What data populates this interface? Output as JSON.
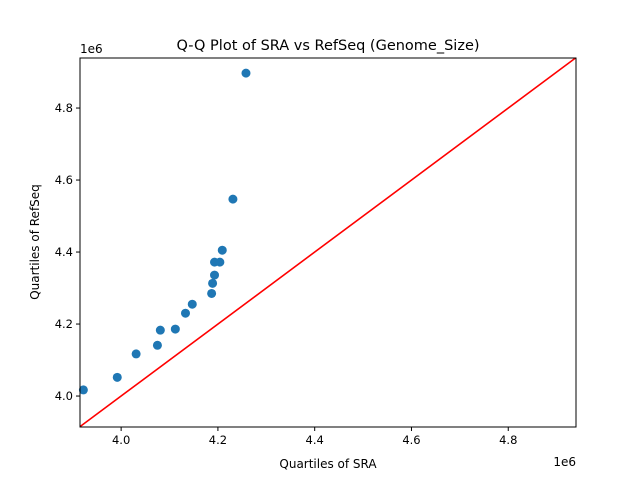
{
  "chart_data": {
    "type": "scatter",
    "title": "Q-Q Plot of SRA vs RefSeq (Genome_Size)",
    "xlabel": "Quartiles of SRA",
    "ylabel": "Quartiles of RefSeq",
    "x_offset_label": "1e6",
    "y_offset_label": "1e6",
    "xlim": [
      3.915,
      4.94
    ],
    "ylim": [
      3.914,
      4.939
    ],
    "xticks": [
      4.0,
      4.2,
      4.4,
      4.6,
      4.8
    ],
    "xtick_labels": [
      "4.0",
      "4.2",
      "4.4",
      "4.6",
      "4.8"
    ],
    "yticks": [
      4.0,
      4.2,
      4.4,
      4.6,
      4.8
    ],
    "ytick_labels": [
      "4.0",
      "4.2",
      "4.4",
      "4.6",
      "4.8"
    ],
    "grid": false,
    "point_color": "#1f77b4",
    "line_color": "#ff0000",
    "reference_line": "y = x",
    "points": [
      {
        "x": 3.922,
        "y": 4.017
      },
      {
        "x": 3.992,
        "y": 4.052
      },
      {
        "x": 4.031,
        "y": 4.117
      },
      {
        "x": 4.075,
        "y": 4.141
      },
      {
        "x": 4.081,
        "y": 4.183
      },
      {
        "x": 4.112,
        "y": 4.186
      },
      {
        "x": 4.133,
        "y": 4.23
      },
      {
        "x": 4.147,
        "y": 4.255
      },
      {
        "x": 4.187,
        "y": 4.285
      },
      {
        "x": 4.189,
        "y": 4.313
      },
      {
        "x": 4.193,
        "y": 4.336
      },
      {
        "x": 4.193,
        "y": 4.372
      },
      {
        "x": 4.204,
        "y": 4.372
      },
      {
        "x": 4.209,
        "y": 4.405
      },
      {
        "x": 4.231,
        "y": 4.547
      },
      {
        "x": 4.258,
        "y": 4.897
      }
    ]
  }
}
